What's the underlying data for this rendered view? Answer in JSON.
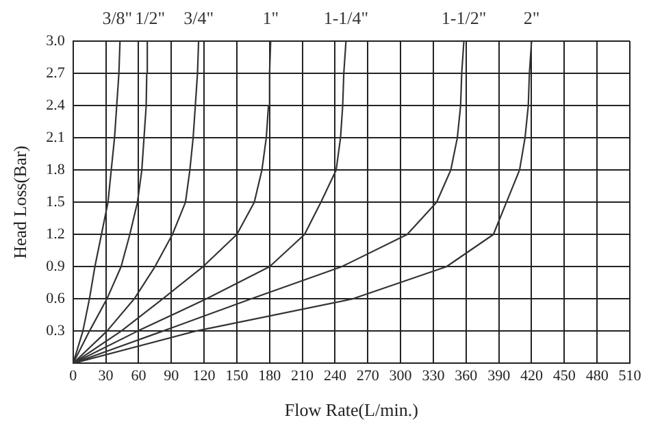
{
  "chart_data": {
    "type": "line",
    "xlabel": "Flow Rate(L/min.)",
    "ylabel": "Head Loss(Bar)",
    "xlim": [
      0,
      510
    ],
    "xticks": [
      0,
      30,
      60,
      90,
      120,
      150,
      180,
      210,
      240,
      270,
      300,
      330,
      360,
      390,
      420,
      450,
      480,
      510
    ],
    "ylim": [
      0,
      3
    ],
    "yticks": [
      {
        "value": 0,
        "label": null
      },
      0.3,
      0.6,
      0.9,
      1.2,
      1.5,
      1.8,
      2.1,
      2.4,
      2.7,
      {
        "value": 3,
        "label": "3.0"
      }
    ],
    "grid": true,
    "legend": false,
    "marker": "none",
    "line_style": "solid",
    "series": [
      {
        "name": "3/8\"",
        "color": "#333333",
        "x": [
          0,
          9,
          15,
          20,
          26,
          32,
          35,
          38,
          40,
          42,
          43
        ],
        "values": [
          0,
          0.3,
          0.6,
          0.9,
          1.2,
          1.5,
          1.8,
          2.1,
          2.4,
          2.7,
          3
        ]
      },
      {
        "name": "1/2\"",
        "color": "#333333",
        "x": [
          0,
          15,
          31,
          44,
          52,
          59,
          63,
          65,
          67,
          67.5,
          68
        ],
        "values": [
          0,
          0.3,
          0.6,
          0.9,
          1.2,
          1.5,
          1.8,
          2.1,
          2.4,
          2.7,
          3
        ]
      },
      {
        "name": "3/4\"",
        "color": "#333333",
        "x": [
          0,
          31,
          56,
          75,
          91,
          103,
          107,
          110,
          112,
          114,
          115
        ],
        "values": [
          0,
          0.3,
          0.6,
          0.9,
          1.2,
          1.5,
          1.8,
          2.1,
          2.4,
          2.7,
          3
        ]
      },
      {
        "name": "1\"",
        "color": "#333333",
        "x": [
          0,
          44,
          82,
          119,
          150,
          166,
          173,
          177,
          179,
          180,
          181
        ],
        "values": [
          0,
          0.3,
          0.6,
          0.9,
          1.2,
          1.5,
          1.8,
          2.1,
          2.4,
          2.7,
          3
        ]
      },
      {
        "name": "1-1/4\"",
        "color": "#333333",
        "x": [
          0,
          59,
          122,
          180,
          212,
          227,
          241,
          245,
          247,
          248,
          250
        ],
        "values": [
          0,
          0.3,
          0.6,
          0.9,
          1.2,
          1.5,
          1.8,
          2.1,
          2.4,
          2.7,
          3
        ]
      },
      {
        "name": "1-1/2\"",
        "color": "#333333",
        "x": [
          0,
          82,
          163,
          246,
          306,
          333,
          346,
          352,
          355,
          356,
          358
        ],
        "values": [
          0,
          0.3,
          0.6,
          0.9,
          1.2,
          1.5,
          1.8,
          2.1,
          2.4,
          2.7,
          3
        ]
      },
      {
        "name": "2\"",
        "color": "#333333",
        "x": [
          0,
          112,
          256,
          342,
          385,
          397,
          409,
          414,
          417,
          418,
          420
        ],
        "values": [
          0,
          0.3,
          0.6,
          0.9,
          1.2,
          1.5,
          1.8,
          2.1,
          2.4,
          2.7,
          3
        ]
      }
    ]
  }
}
